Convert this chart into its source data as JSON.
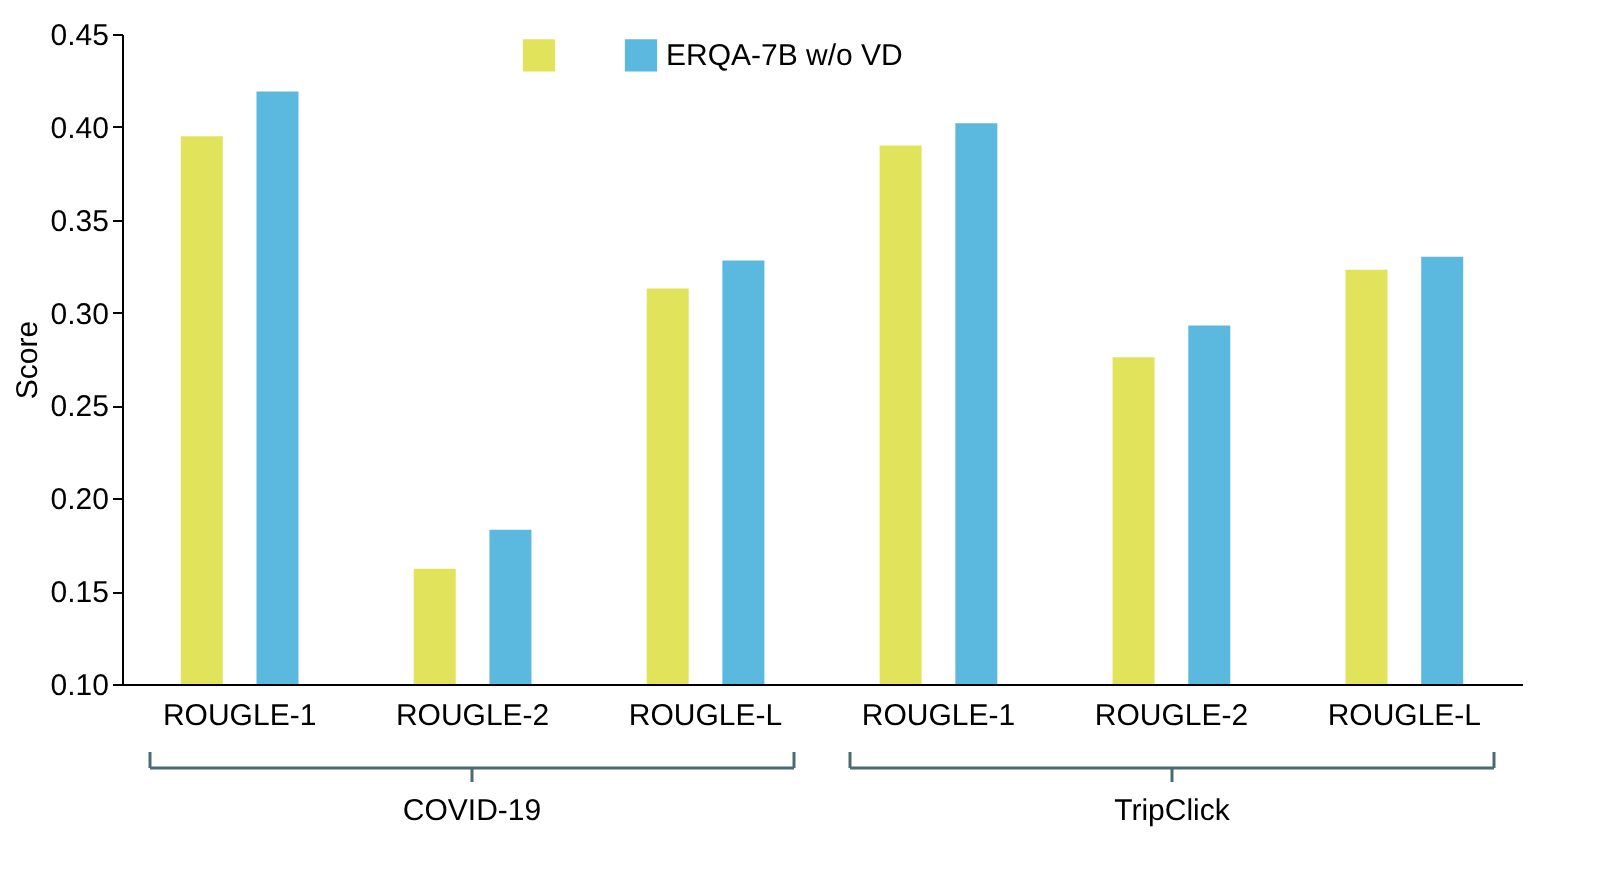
{
  "chart_data": {
    "type": "bar",
    "ylabel": "Score",
    "categories": [
      "ROUGLE-1",
      "ROUGLE-2",
      "ROUGLE-L",
      "ROUGLE-1",
      "ROUGLE-2",
      "ROUGLE-L"
    ],
    "series": [
      {
        "color": "#e1e35b",
        "values": [
          0.395,
          0.162,
          0.313,
          0.39,
          0.276,
          0.323
        ]
      },
      {
        "name": "ERQA-7B w/o VD",
        "color": "#5bb9e0",
        "values": [
          0.419,
          0.183,
          0.328,
          0.402,
          0.293,
          0.33
        ]
      }
    ],
    "ylim": [
      0.1,
      0.45
    ],
    "yticks": [
      {
        "value": 0.1,
        "label": "0.10"
      },
      {
        "value": 0.15,
        "label": "0.15"
      },
      {
        "value": 0.2,
        "label": "0.20"
      },
      {
        "value": 0.25,
        "label": "0.25"
      },
      {
        "value": 0.3,
        "label": "0.30"
      },
      {
        "value": 0.35,
        "label": "0.35"
      },
      {
        "value": 0.4,
        "label": "0.40"
      },
      {
        "value": 0.45,
        "label": "0.45"
      }
    ],
    "grid": false,
    "legend": "top",
    "annotations": [
      "COVID-19",
      "TripClick"
    ]
  }
}
